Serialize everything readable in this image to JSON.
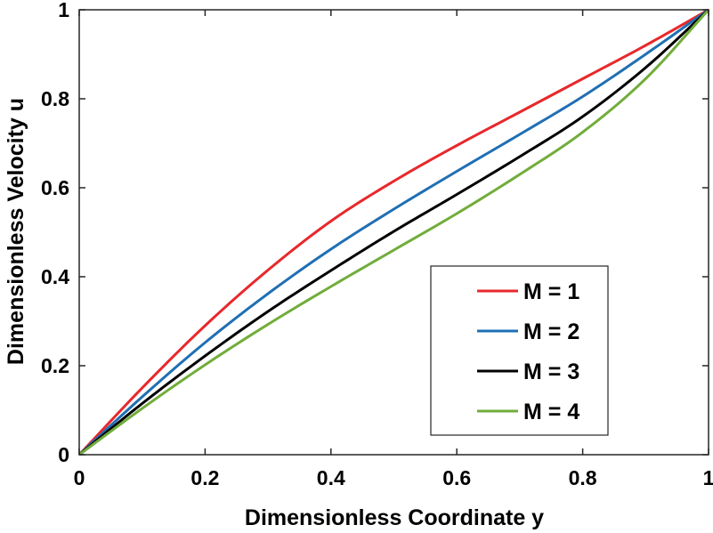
{
  "chart_data": {
    "type": "line",
    "title": "",
    "xlabel": "Dimensionless Coordinate y",
    "ylabel": "Dimensionless Velocity u",
    "xlim": [
      0,
      1
    ],
    "ylim": [
      0,
      1
    ],
    "xticks": [
      0,
      0.2,
      0.4,
      0.6,
      0.8,
      1
    ],
    "yticks": [
      0,
      0.2,
      0.4,
      0.6,
      0.8,
      1
    ],
    "xtick_labels": [
      "0",
      "0.2",
      "0.4",
      "0.6",
      "0.8",
      "1"
    ],
    "ytick_labels": [
      "0",
      "0.2",
      "0.4",
      "0.6",
      "0.8",
      "1"
    ],
    "grid": false,
    "legend_position": "bottom-right",
    "x": [
      0,
      0.1,
      0.2,
      0.3,
      0.4,
      0.5,
      0.6,
      0.7,
      0.8,
      0.9,
      1
    ],
    "series": [
      {
        "name": "M = 1",
        "color": "#e8282b",
        "values": [
          0,
          0.15,
          0.29,
          0.415,
          0.525,
          0.615,
          0.695,
          0.77,
          0.845,
          0.92,
          1
        ]
      },
      {
        "name": "M = 2",
        "color": "#1f6fb4",
        "values": [
          0,
          0.13,
          0.252,
          0.362,
          0.462,
          0.552,
          0.637,
          0.72,
          0.805,
          0.9,
          1
        ]
      },
      {
        "name": "M = 3",
        "color": "#000000",
        "values": [
          0,
          0.115,
          0.222,
          0.322,
          0.414,
          0.502,
          0.585,
          0.67,
          0.76,
          0.87,
          1
        ]
      },
      {
        "name": "M = 4",
        "color": "#71ad3b",
        "values": [
          0,
          0.104,
          0.202,
          0.293,
          0.378,
          0.46,
          0.542,
          0.63,
          0.725,
          0.845,
          1
        ]
      }
    ]
  }
}
